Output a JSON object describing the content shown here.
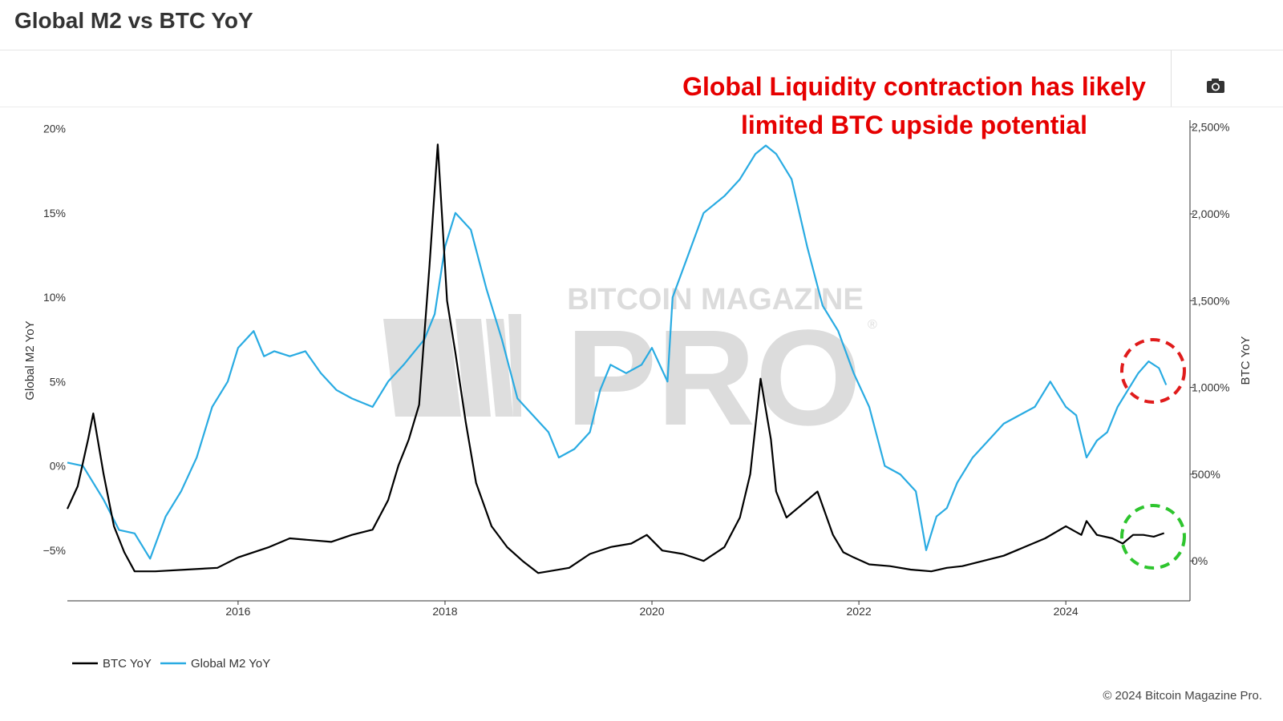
{
  "page": {
    "title": "Global M2 vs BTC YoY",
    "annotation_line1": "Global Liquidity contraction has likely",
    "annotation_line2": "limited BTC upside potential",
    "footer": "© 2024 Bitcoin Magazine Pro.",
    "camera_icon": "camera-icon"
  },
  "watermark": {
    "line1": "BITCOIN MAGAZINE",
    "line2": "PRO",
    "mark": "®"
  },
  "colors": {
    "m2": "#29abe2",
    "btc": "#000000",
    "annotation": "#e60000",
    "red_circle": "#e01b1b",
    "green_circle": "#2ec52e",
    "axis": "#333333",
    "watermark": "#d9d9d9"
  },
  "chart_data": {
    "type": "line",
    "title": "Global M2 vs BTC YoY",
    "xlabel": "",
    "x_ticks": [
      "2016",
      "2018",
      "2020",
      "2022",
      "2024"
    ],
    "x_tick_values": [
      2016,
      2018,
      2020,
      2022,
      2024
    ],
    "xlim": [
      2014.35,
      2025.2
    ],
    "left_axis": {
      "label": "Global M2 YoY",
      "ylim": [
        -8,
        20.5
      ],
      "tick_values": [
        20,
        15,
        10,
        5,
        0,
        -5
      ],
      "tick_labels": [
        "20%",
        "15%",
        "10%",
        "5%",
        "0%",
        "−5%"
      ]
    },
    "right_axis": {
      "label": "BTC YoY",
      "ylim": [
        -230,
        2540
      ],
      "tick_values": [
        2500,
        2000,
        1500,
        1000,
        500,
        0
      ],
      "tick_labels": [
        "2,500%",
        "2,000%",
        "1,500%",
        "1,000%",
        "500%",
        "0%"
      ]
    },
    "legend": {
      "placement": "bottom-left",
      "entries": [
        "BTC YoY",
        "Global M2 YoY"
      ]
    },
    "series": [
      {
        "name": "Global M2 YoY",
        "axis": "left",
        "x": [
          2014.35,
          2014.5,
          2014.7,
          2014.85,
          2015.0,
          2015.15,
          2015.3,
          2015.45,
          2015.6,
          2015.75,
          2015.9,
          2016.0,
          2016.15,
          2016.25,
          2016.35,
          2016.5,
          2016.65,
          2016.8,
          2016.95,
          2017.1,
          2017.3,
          2017.45,
          2017.6,
          2017.8,
          2017.9,
          2018.0,
          2018.1,
          2018.25,
          2018.4,
          2018.55,
          2018.7,
          2018.85,
          2019.0,
          2019.1,
          2019.25,
          2019.4,
          2019.5,
          2019.6,
          2019.75,
          2019.9,
          2020.0,
          2020.15,
          2020.2,
          2020.35,
          2020.5,
          2020.7,
          2020.85,
          2021.0,
          2021.1,
          2021.2,
          2021.35,
          2021.5,
          2021.65,
          2021.8,
          2021.95,
          2022.1,
          2022.25,
          2022.4,
          2022.55,
          2022.65,
          2022.75,
          2022.85,
          2022.95,
          2023.1,
          2023.25,
          2023.4,
          2023.55,
          2023.7,
          2023.85,
          2024.0,
          2024.1,
          2024.2,
          2024.3,
          2024.4,
          2024.5,
          2024.6,
          2024.7,
          2024.8,
          2024.9,
          2024.97
        ],
        "values": [
          0.2,
          0.0,
          -2.0,
          -3.8,
          -4.0,
          -5.5,
          -3.0,
          -1.5,
          0.5,
          3.5,
          5.0,
          7.0,
          8.0,
          6.5,
          6.8,
          6.5,
          6.8,
          5.5,
          4.5,
          4.0,
          3.5,
          5.0,
          6.0,
          7.5,
          9.0,
          13.0,
          15.0,
          14.0,
          10.5,
          7.5,
          4.0,
          3.0,
          2.0,
          0.5,
          1.0,
          2.0,
          4.5,
          6.0,
          5.5,
          6.0,
          7.0,
          5.0,
          10.0,
          12.5,
          15.0,
          16.0,
          17.0,
          18.5,
          19.0,
          18.5,
          17.0,
          13.0,
          9.5,
          8.0,
          5.5,
          3.5,
          0.0,
          -0.5,
          -1.5,
          -5.0,
          -3.0,
          -2.5,
          -1.0,
          0.5,
          1.5,
          2.5,
          3.0,
          3.5,
          5.0,
          3.5,
          3.0,
          0.5,
          1.5,
          2.0,
          3.5,
          4.5,
          5.5,
          6.2,
          5.8,
          4.8
        ]
      },
      {
        "name": "BTC YoY",
        "axis": "right",
        "x": [
          2014.35,
          2014.45,
          2014.55,
          2014.6,
          2014.7,
          2014.8,
          2014.9,
          2015.0,
          2015.2,
          2015.5,
          2015.8,
          2016.0,
          2016.3,
          2016.5,
          2016.7,
          2016.9,
          2017.1,
          2017.3,
          2017.45,
          2017.55,
          2017.65,
          2017.75,
          2017.85,
          2017.93,
          2017.97,
          2018.02,
          2018.1,
          2018.2,
          2018.3,
          2018.45,
          2018.6,
          2018.75,
          2018.9,
          2019.0,
          2019.2,
          2019.4,
          2019.6,
          2019.8,
          2019.95,
          2020.1,
          2020.3,
          2020.5,
          2020.7,
          2020.85,
          2020.95,
          2021.05,
          2021.15,
          2021.2,
          2021.3,
          2021.4,
          2021.5,
          2021.6,
          2021.75,
          2021.85,
          2021.95,
          2022.1,
          2022.3,
          2022.5,
          2022.7,
          2022.85,
          2023.0,
          2023.2,
          2023.4,
          2023.6,
          2023.8,
          2024.0,
          2024.15,
          2024.2,
          2024.3,
          2024.45,
          2024.55,
          2024.65,
          2024.75,
          2024.85,
          2024.95
        ],
        "values": [
          300,
          430,
          700,
          850,
          500,
          200,
          50,
          -60,
          -60,
          -50,
          -40,
          20,
          80,
          130,
          120,
          110,
          150,
          180,
          350,
          550,
          700,
          900,
          1700,
          2400,
          2000,
          1500,
          1200,
          800,
          450,
          200,
          80,
          0,
          -70,
          -60,
          -40,
          40,
          80,
          100,
          150,
          60,
          40,
          0,
          80,
          250,
          500,
          1050,
          700,
          400,
          250,
          300,
          350,
          400,
          150,
          50,
          20,
          -20,
          -30,
          -50,
          -60,
          -40,
          -30,
          0,
          30,
          80,
          130,
          200,
          150,
          230,
          150,
          130,
          100,
          150,
          150,
          140,
          160
        ]
      }
    ]
  }
}
